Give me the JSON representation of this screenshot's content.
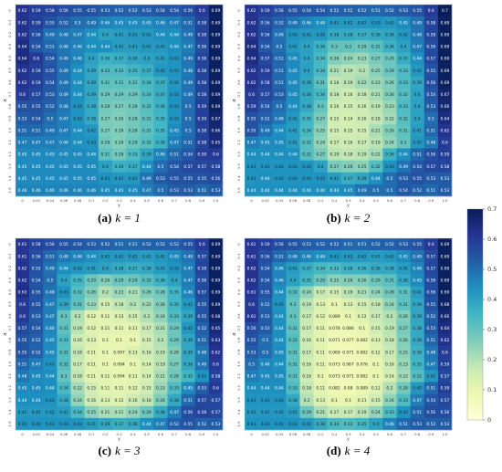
{
  "chart_data": [
    {
      "type": "heatmap",
      "caption_label": "(a)",
      "caption_text": "k = 1",
      "xlabel": "y",
      "ylabel": "α",
      "x": [
        "0",
        "0.02",
        "0.04",
        "0.06",
        "0.08",
        "0.1",
        "0.2",
        "0.3",
        "0.4",
        "0.5",
        "0.6",
        "0.7",
        "0.8",
        "0.9",
        "1.0"
      ],
      "y": [
        "0",
        "0.1",
        "0.2",
        "0.3",
        "0.4",
        "0.5",
        "0.6",
        "0.7",
        "0.8",
        "0.9",
        "1.0",
        "1.1",
        "1.2",
        "1.3",
        "1.4",
        "1.5"
      ],
      "z": [
        [
          0.62,
          0.59,
          0.58,
          0.56,
          0.55,
          0.55,
          0.53,
          0.52,
          0.52,
          0.53,
          0.54,
          0.54,
          0.56,
          0.6,
          0.69
        ],
        [
          0.62,
          0.59,
          0.55,
          0.52,
          0.5,
          0.49,
          0.46,
          0.45,
          0.45,
          0.45,
          0.46,
          0.47,
          0.51,
          0.58,
          0.69
        ],
        [
          0.62,
          0.56,
          0.49,
          0.48,
          0.47,
          0.44,
          0.4,
          0.41,
          0.42,
          0.42,
          0.44,
          0.44,
          0.49,
          0.58,
          0.69
        ],
        [
          0.64,
          0.54,
          0.51,
          0.48,
          0.46,
          0.44,
          0.44,
          0.41,
          0.41,
          0.42,
          0.42,
          0.44,
          0.47,
          0.56,
          0.69
        ],
        [
          0.64,
          0.6,
          0.54,
          0.49,
          0.46,
          0.4,
          0.36,
          0.37,
          0.39,
          0.4,
          0.41,
          0.43,
          0.49,
          0.58,
          0.69
        ],
        [
          0.62,
          0.59,
          0.55,
          0.49,
          0.44,
          0.39,
          0.33,
          0.33,
          0.35,
          0.37,
          0.42,
          0.43,
          0.48,
          0.58,
          0.69
        ],
        [
          0.62,
          0.59,
          0.54,
          0.49,
          0.44,
          0.39,
          0.31,
          0.31,
          0.31,
          0.34,
          0.37,
          0.42,
          0.49,
          0.58,
          0.69
        ],
        [
          0.6,
          0.57,
          0.53,
          0.49,
          0.44,
          0.39,
          0.29,
          0.29,
          0.29,
          0.33,
          0.37,
          0.43,
          0.49,
          0.58,
          0.69
        ],
        [
          0.55,
          0.55,
          0.52,
          0.48,
          0.43,
          0.38,
          0.28,
          0.27,
          0.28,
          0.32,
          0.36,
          0.43,
          0.5,
          0.59,
          0.69
        ],
        [
          0.53,
          0.54,
          0.5,
          0.47,
          0.43,
          0.38,
          0.27,
          0.26,
          0.28,
          0.31,
          0.35,
          0.43,
          0.5,
          0.59,
          0.67
        ],
        [
          0.51,
          0.51,
          0.49,
          0.47,
          0.44,
          0.42,
          0.27,
          0.26,
          0.28,
          0.31,
          0.35,
          0.45,
          0.5,
          0.58,
          0.66
        ],
        [
          0.47,
          0.47,
          0.47,
          0.46,
          0.44,
          0.43,
          0.28,
          0.26,
          0.29,
          0.32,
          0.36,
          0.47,
          0.51,
          0.58,
          0.65
        ],
        [
          0.45,
          0.45,
          0.45,
          0.45,
          0.45,
          0.44,
          0.31,
          0.28,
          0.33,
          0.39,
          0.46,
          0.51,
          0.54,
          0.59,
          0.6
        ],
        [
          0.45,
          0.45,
          0.45,
          0.45,
          0.45,
          0.45,
          0.4,
          0.36,
          0.37,
          0.44,
          0.5,
          0.54,
          0.57,
          0.57,
          0.58
        ],
        [
          0.45,
          0.45,
          0.45,
          0.45,
          0.45,
          0.45,
          0.43,
          0.42,
          0.42,
          0.49,
          0.53,
          0.55,
          0.55,
          0.55,
          0.56
        ],
        [
          0.46,
          0.46,
          0.46,
          0.46,
          0.46,
          0.46,
          0.45,
          0.45,
          0.45,
          0.47,
          0.5,
          0.53,
          0.53,
          0.51,
          0.53
        ]
      ]
    },
    {
      "type": "heatmap",
      "caption_label": "(b)",
      "caption_text": "k = 2",
      "xlabel": "y",
      "ylabel": "α",
      "x": [
        "0",
        "0.02",
        "0.04",
        "0.06",
        "0.08",
        "0.1",
        "0.2",
        "0.3",
        "0.4",
        "0.5",
        "0.6",
        "0.7",
        "0.8",
        "0.9",
        "1.0"
      ],
      "y": [
        "0",
        "0.1",
        "0.2",
        "0.3",
        "0.4",
        "0.5",
        "0.6",
        "0.7",
        "0.8",
        "0.9",
        "1.0",
        "1.1",
        "1.2",
        "1.3",
        "1.4",
        "1.5"
      ],
      "z": [
        [
          0.62,
          0.59,
          0.56,
          0.55,
          0.54,
          0.54,
          0.52,
          0.52,
          0.52,
          0.51,
          0.52,
          0.53,
          0.55,
          0.6,
          0.7
        ],
        [
          0.62,
          0.56,
          0.52,
          0.49,
          0.46,
          0.44,
          0.42,
          0.42,
          0.42,
          0.43,
          0.42,
          0.45,
          0.49,
          0.58,
          0.69
        ],
        [
          0.62,
          0.56,
          0.49,
          0.43,
          0.42,
          0.42,
          0.38,
          0.38,
          0.37,
          0.38,
          0.39,
          0.42,
          0.48,
          0.58,
          0.69
        ],
        [
          0.64,
          0.54,
          0.5,
          0.42,
          0.4,
          0.36,
          0.3,
          0.3,
          0.29,
          0.31,
          0.36,
          0.4,
          0.47,
          0.56,
          0.69
        ],
        [
          0.64,
          0.57,
          0.51,
          0.45,
          0.4,
          0.34,
          0.26,
          0.24,
          0.23,
          0.27,
          0.29,
          0.37,
          0.44,
          0.57,
          0.69
        ],
        [
          0.62,
          0.59,
          0.51,
          0.45,
          0.4,
          0.34,
          0.21,
          0.19,
          0.2,
          0.25,
          0.29,
          0.33,
          0.42,
          0.55,
          0.69
        ],
        [
          0.62,
          0.58,
          0.51,
          0.45,
          0.39,
          0.31,
          0.18,
          0.19,
          0.22,
          0.23,
          0.26,
          0.33,
          0.39,
          0.56,
          0.69
        ],
        [
          0.6,
          0.57,
          0.53,
          0.45,
          0.38,
          0.34,
          0.18,
          0.16,
          0.18,
          0.21,
          0.26,
          0.32,
          0.4,
          0.54,
          0.67
        ],
        [
          0.59,
          0.54,
          0.5,
          0.44,
          0.38,
          0.3,
          0.16,
          0.15,
          0.16,
          0.19,
          0.23,
          0.33,
          0.4,
          0.53,
          0.66
        ],
        [
          0.55,
          0.52,
          0.48,
          0.42,
          0.35,
          0.27,
          0.15,
          0.14,
          0.16,
          0.18,
          0.22,
          0.32,
          0.4,
          0.5,
          0.64
        ],
        [
          0.55,
          0.49,
          0.44,
          0.41,
          0.34,
          0.25,
          0.15,
          0.15,
          0.15,
          0.21,
          0.26,
          0.31,
          0.41,
          0.51,
          0.62
        ],
        [
          0.47,
          0.45,
          0.45,
          0.41,
          0.32,
          0.24,
          0.17,
          0.16,
          0.17,
          0.19,
          0.24,
          0.3,
          0.42,
          0.48,
          0.6
        ],
        [
          0.44,
          0.44,
          0.44,
          0.44,
          0.32,
          0.27,
          0.19,
          0.18,
          0.19,
          0.22,
          0.36,
          0.44,
          0.51,
          0.56,
          0.59
        ],
        [
          0.43,
          0.43,
          0.43,
          0.43,
          0.43,
          0.4,
          0.27,
          0.26,
          0.25,
          0.32,
          0.43,
          0.49,
          0.54,
          0.57,
          0.58
        ],
        [
          0.43,
          0.44,
          0.43,
          0.43,
          0.43,
          0.43,
          0.41,
          0.37,
          0.39,
          0.44,
          0.5,
          0.53,
          0.55,
          0.53,
          0.53
        ],
        [
          0.44,
          0.44,
          0.44,
          0.44,
          0.44,
          0.44,
          0.44,
          0.45,
          0.49,
          0.5,
          0.5,
          0.54,
          0.52,
          0.51,
          0.53
        ]
      ]
    },
    {
      "type": "heatmap",
      "caption_label": "(c)",
      "caption_text": "k = 3",
      "xlabel": "y",
      "ylabel": "α",
      "x": [
        "0",
        "0.02",
        "0.04",
        "0.06",
        "0.08",
        "0.1",
        "0.2",
        "0.3",
        "0.4",
        "0.5",
        "0.6",
        "0.7",
        "0.8",
        "0.9",
        "1.0"
      ],
      "y": [
        "0",
        "0.1",
        "0.2",
        "0.3",
        "0.4",
        "0.5",
        "0.6",
        "0.7",
        "0.8",
        "0.9",
        "1.0",
        "1.1",
        "1.2",
        "1.3",
        "1.4",
        "1.5"
      ],
      "z": [
        [
          0.61,
          0.58,
          0.56,
          0.55,
          0.54,
          0.53,
          0.52,
          0.51,
          0.51,
          0.52,
          0.52,
          0.52,
          0.55,
          0.6,
          0.69
        ],
        [
          0.61,
          0.56,
          0.51,
          0.48,
          0.46,
          0.44,
          0.42,
          0.42,
          0.42,
          0.41,
          0.42,
          0.45,
          0.49,
          0.57,
          0.69
        ],
        [
          0.62,
          0.55,
          0.49,
          0.44,
          0.42,
          0.41,
          0.4,
          0.38,
          0.37,
          0.38,
          0.41,
          0.43,
          0.47,
          0.58,
          0.69
        ],
        [
          0.62,
          0.54,
          0.5,
          0.4,
          0.35,
          0.29,
          0.26,
          0.29,
          0.29,
          0.32,
          0.36,
          0.4,
          0.47,
          0.56,
          0.69
        ],
        [
          0.63,
          0.55,
          0.49,
          0.43,
          0.32,
          0.26,
          0.2,
          0.23,
          0.21,
          0.26,
          0.28,
          0.35,
          0.46,
          0.57,
          0.69
        ],
        [
          0.6,
          0.55,
          0.47,
          0.39,
          0.31,
          0.23,
          0.15,
          0.18,
          0.2,
          0.22,
          0.26,
          0.35,
          0.42,
          0.55,
          0.69
        ],
        [
          0.6,
          0.53,
          0.47,
          0.3,
          0.2,
          0.12,
          0.11,
          0.13,
          0.15,
          0.2,
          0.24,
          0.33,
          0.39,
          0.55,
          0.68
        ],
        [
          0.57,
          0.54,
          0.46,
          0.31,
          0.19,
          0.12,
          0.11,
          0.11,
          0.11,
          0.17,
          0.21,
          0.29,
          0.42,
          0.52,
          0.65
        ],
        [
          0.55,
          0.52,
          0.45,
          0.33,
          0.16,
          0.13,
          0.1,
          0.1,
          0.1,
          0.15,
          0.2,
          0.29,
          0.39,
          0.51,
          0.63
        ],
        [
          0.55,
          0.52,
          0.45,
          0.32,
          0.18,
          0.11,
          0.1,
          0.097,
          0.13,
          0.16,
          0.19,
          0.26,
          0.39,
          0.48,
          0.62
        ],
        [
          0.51,
          0.47,
          0.43,
          0.32,
          0.17,
          0.11,
          0.1,
          0.094,
          0.1,
          0.14,
          0.19,
          0.27,
          0.38,
          0.49,
          0.6
        ],
        [
          0.48,
          0.45,
          0.44,
          0.3,
          0.18,
          0.11,
          0.11,
          0.094,
          0.11,
          0.14,
          0.21,
          0.28,
          0.35,
          0.43,
          0.58
        ],
        [
          0.45,
          0.45,
          0.44,
          0.34,
          0.22,
          0.15,
          0.11,
          0.11,
          0.12,
          0.15,
          0.23,
          0.33,
          0.45,
          0.53,
          0.6
        ],
        [
          0.44,
          0.44,
          0.43,
          0.38,
          0.24,
          0.16,
          0.13,
          0.12,
          0.16,
          0.18,
          0.26,
          0.38,
          0.51,
          0.57,
          0.57
        ],
        [
          0.42,
          0.42,
          0.42,
          0.41,
          0.34,
          0.25,
          0.21,
          0.21,
          0.24,
          0.29,
          0.38,
          0.47,
          0.56,
          0.58,
          0.57
        ],
        [
          0.43,
          0.43,
          0.43,
          0.43,
          0.43,
          0.41,
          0.39,
          0.37,
          0.38,
          0.44,
          0.47,
          0.52,
          0.55,
          0.52,
          0.53
        ]
      ]
    },
    {
      "type": "heatmap",
      "caption_label": "(d)",
      "caption_text": "k = 4",
      "xlabel": "y",
      "ylabel": "α",
      "x": [
        "0",
        "0.02",
        "0.04",
        "0.06",
        "0.08",
        "0.1",
        "0.2",
        "0.3",
        "0.4",
        "0.5",
        "0.6",
        "0.7",
        "0.8",
        "0.9",
        "1.0"
      ],
      "y": [
        "0",
        "0.1",
        "0.2",
        "0.3",
        "0.4",
        "0.5",
        "0.6",
        "0.7",
        "0.8",
        "0.9",
        "1.0",
        "1.1",
        "1.2",
        "1.3",
        "1.4",
        "1.5"
      ],
      "z": [
        [
          0.61,
          0.59,
          0.56,
          0.55,
          0.53,
          0.52,
          0.52,
          0.51,
          0.51,
          0.52,
          0.52,
          0.53,
          0.55,
          0.6,
          0.69
        ],
        [
          0.61,
          0.56,
          0.51,
          0.48,
          0.46,
          0.44,
          0.43,
          0.42,
          0.42,
          0.41,
          0.42,
          0.45,
          0.49,
          0.57,
          0.69
        ],
        [
          0.62,
          0.54,
          0.46,
          0.41,
          0.37,
          0.34,
          0.33,
          0.36,
          0.36,
          0.38,
          0.38,
          0.41,
          0.46,
          0.57,
          0.69
        ],
        [
          0.62,
          0.54,
          0.46,
          0.4,
          0.35,
          0.29,
          0.25,
          0.26,
          0.26,
          0.29,
          0.31,
          0.38,
          0.45,
          0.56,
          0.69
        ],
        [
          0.61,
          0.55,
          0.44,
          0.32,
          0.24,
          0.17,
          0.15,
          0.19,
          0.21,
          0.24,
          0.28,
          0.31,
          0.41,
          0.56,
          0.69
        ],
        [
          0.6,
          0.52,
          0.43,
          0.3,
          0.19,
          0.13,
          0.1,
          0.13,
          0.15,
          0.18,
          0.24,
          0.31,
          0.39,
          0.55,
          0.68
        ],
        [
          0.61,
          0.53,
          0.44,
          0.3,
          0.17,
          0.12,
          0.089,
          0.1,
          0.12,
          0.17,
          0.2,
          0.26,
          0.39,
          0.52,
          0.66
        ],
        [
          0.56,
          0.53,
          0.44,
          0.31,
          0.17,
          0.11,
          0.078,
          0.086,
          0.1,
          0.15,
          0.19,
          0.27,
          0.38,
          0.53,
          0.64
        ],
        [
          0.55,
          0.5,
          0.44,
          0.32,
          0.16,
          0.11,
          0.071,
          0.077,
          0.082,
          0.13,
          0.18,
          0.26,
          0.38,
          0.51,
          0.62
        ],
        [
          0.53,
          0.5,
          0.45,
          0.31,
          0.17,
          0.11,
          0.069,
          0.071,
          0.082,
          0.12,
          0.17,
          0.25,
          0.36,
          0.48,
          0.6
        ],
        [
          0.5,
          0.46,
          0.44,
          0.31,
          0.16,
          0.11,
          0.073,
          0.067,
          0.076,
          0.1,
          0.16,
          0.23,
          0.35,
          0.47,
          0.59
        ],
        [
          0.47,
          0.45,
          0.45,
          0.31,
          0.16,
          0.1,
          0.073,
          0.071,
          0.082,
          0.1,
          0.14,
          0.22,
          0.32,
          0.42,
          0.57
        ],
        [
          0.44,
          0.44,
          0.44,
          0.33,
          0.18,
          0.11,
          0.082,
          0.08,
          0.089,
          0.12,
          0.2,
          0.28,
          0.42,
          0.51,
          0.59
        ],
        [
          0.43,
          0.43,
          0.43,
          0.38,
          0.2,
          0.13,
          0.1,
          0.1,
          0.11,
          0.15,
          0.24,
          0.33,
          0.47,
          0.54,
          0.57
        ],
        [
          0.42,
          0.42,
          0.42,
          0.41,
          0.29,
          0.21,
          0.17,
          0.17,
          0.19,
          0.24,
          0.33,
          0.43,
          0.51,
          0.56,
          0.56
        ],
        [
          0.43,
          0.43,
          0.43,
          0.43,
          0.42,
          0.38,
          0.34,
          0.33,
          0.35,
          0.4,
          0.46,
          0.51,
          0.53,
          0.52,
          0.53
        ]
      ]
    }
  ],
  "colorbar": {
    "min": 0,
    "max": 0.7,
    "ticks": [
      "0",
      "0.1",
      "0.2",
      "0.3",
      "0.4",
      "0.5",
      "0.6",
      "0.7"
    ],
    "colormap": "YlGnBu",
    "stops": [
      "#ffffd9",
      "#edf8b1",
      "#c7e9b4",
      "#7fcdbb",
      "#41b6c4",
      "#1d91c0",
      "#225ea8",
      "#253494",
      "#081d58"
    ]
  }
}
